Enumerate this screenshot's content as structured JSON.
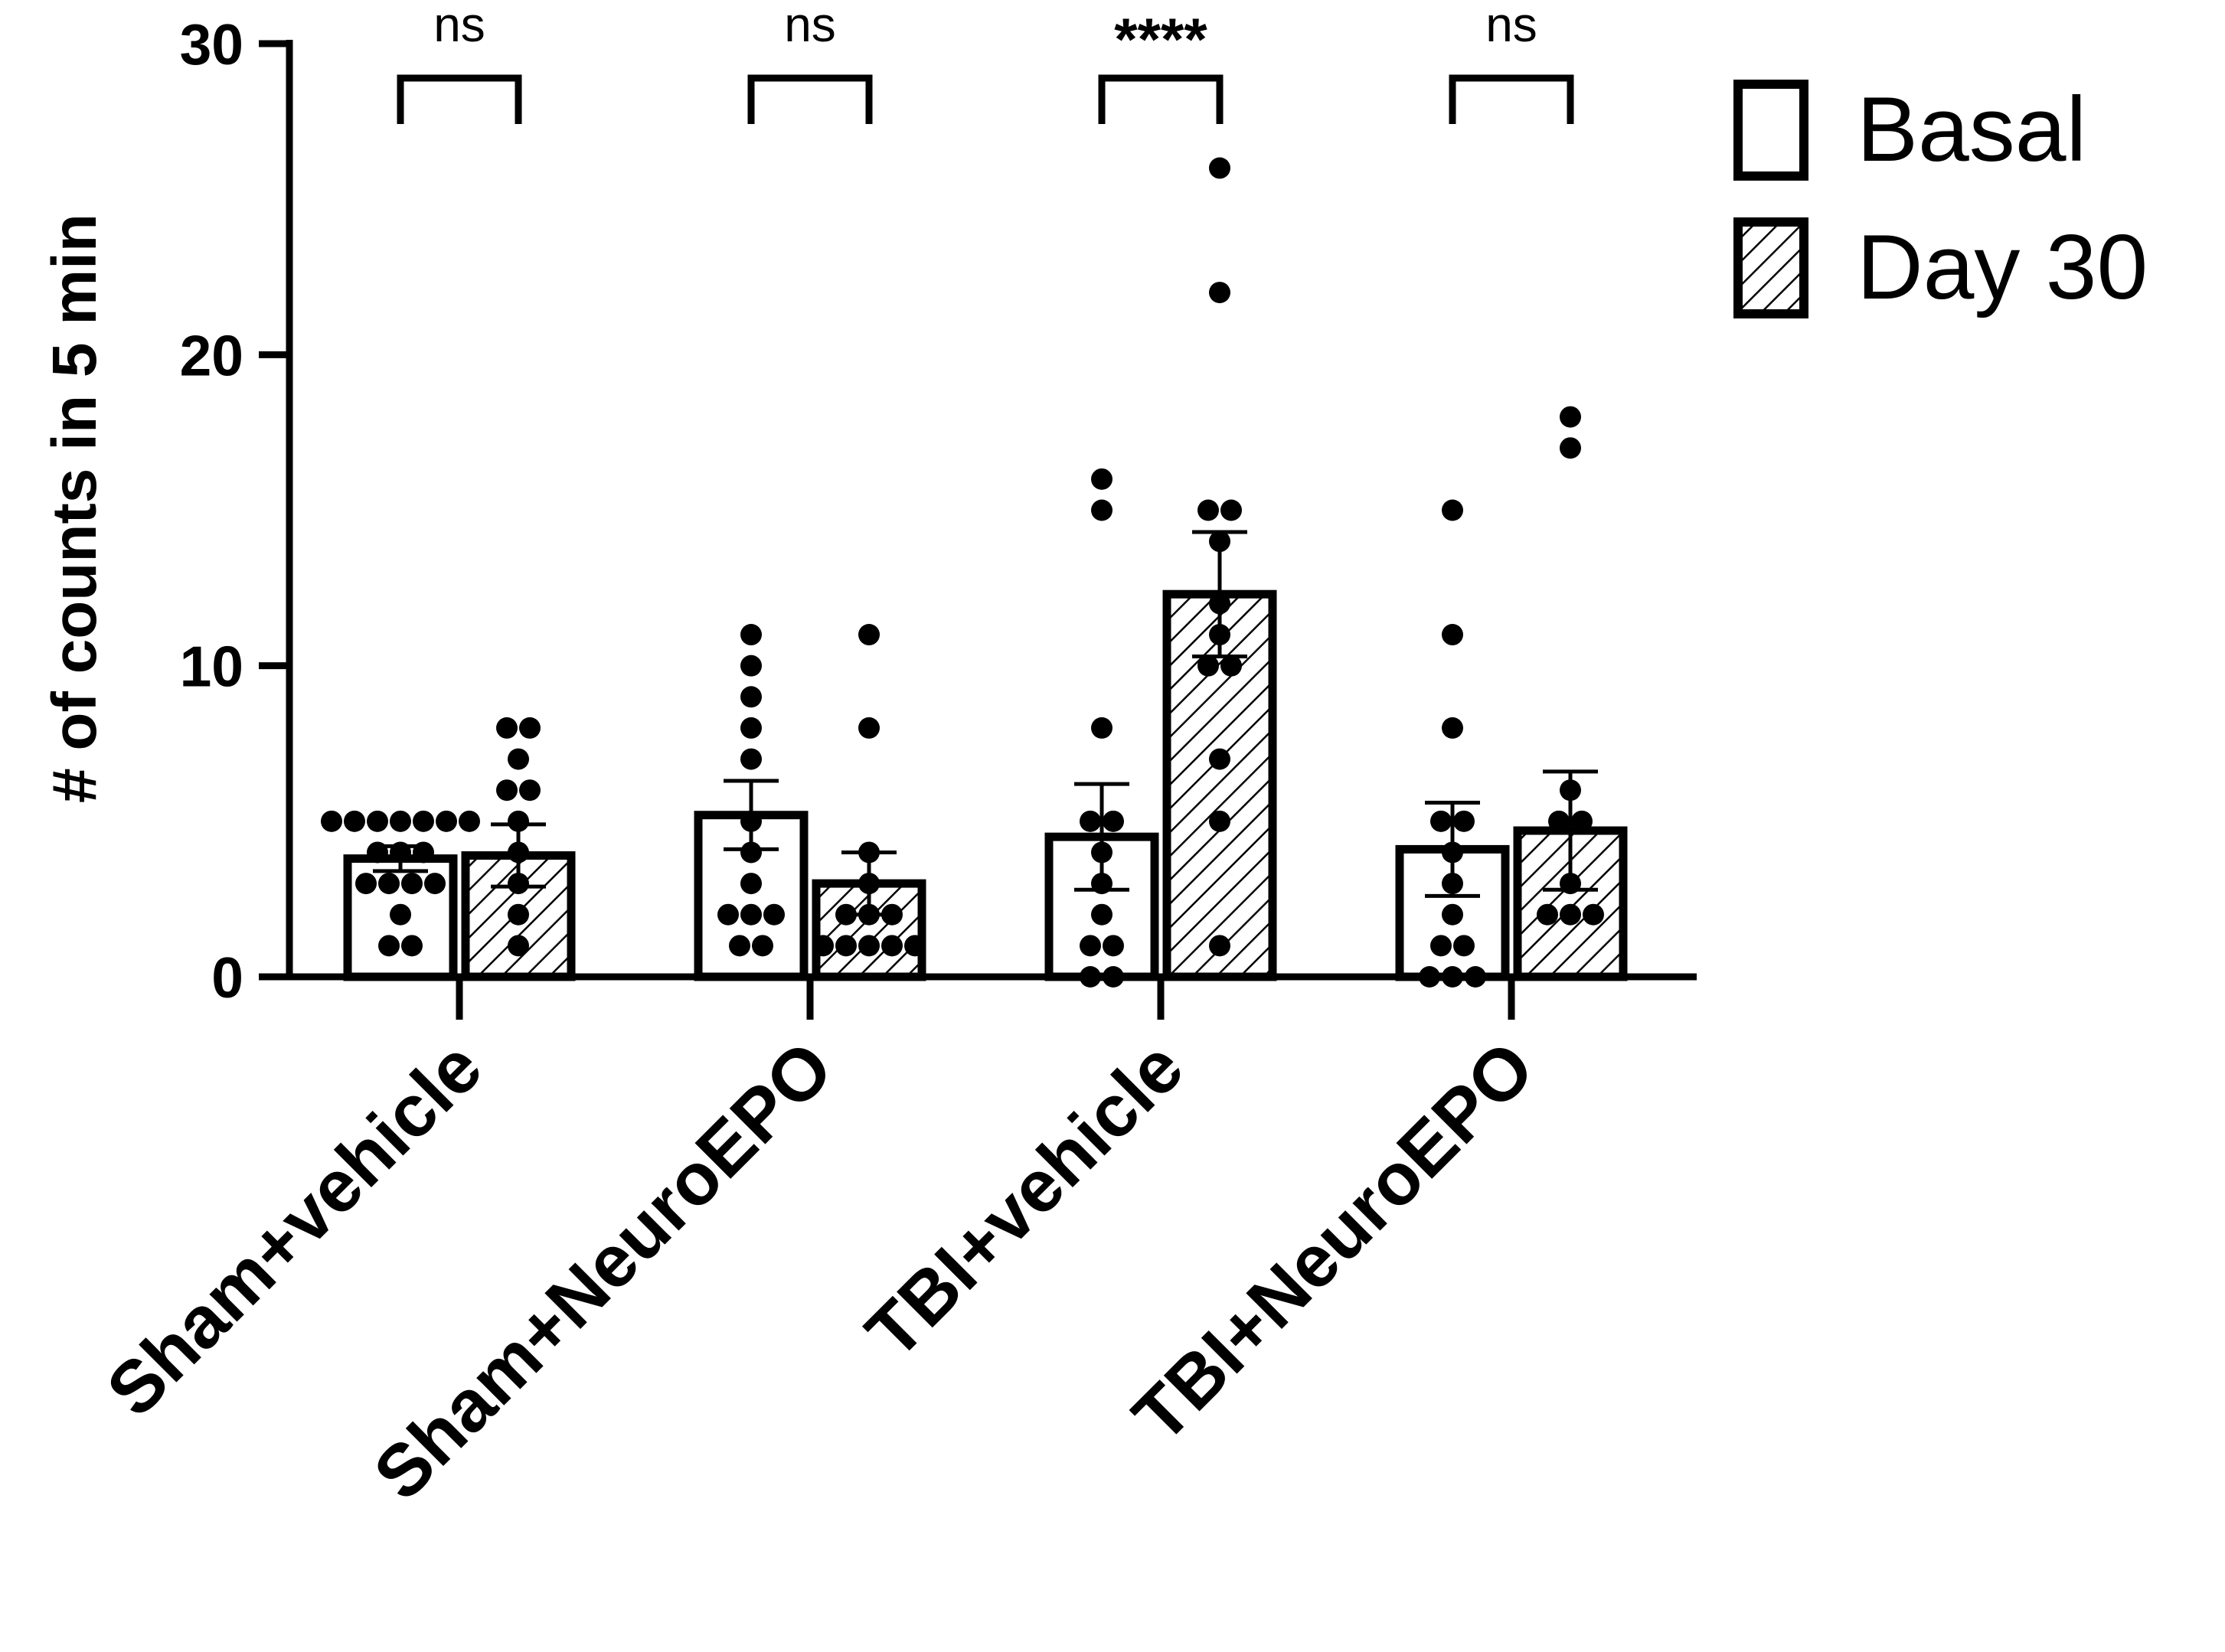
{
  "chart_data": {
    "type": "bar",
    "ylabel": "# of counts in 5 min",
    "xlabel": "",
    "ylim": [
      0,
      30
    ],
    "yticks": [
      0,
      10,
      20,
      30
    ],
    "categories": [
      "Sham+vehicle",
      "Sham+NeuroEPO",
      "TBI+vehicle",
      "TBI+NeuroEPO"
    ],
    "series": [
      {
        "name": "Basal",
        "pattern": "open",
        "values": [
          3.8,
          5.2,
          4.5,
          4.1
        ],
        "sem": [
          0.4,
          1.1,
          1.7,
          1.5
        ],
        "points": [
          [
            5,
            5,
            5,
            5,
            5,
            5,
            5,
            4,
            4,
            4,
            3,
            3,
            3,
            3,
            2,
            1,
            1
          ],
          [
            11,
            10,
            9,
            8,
            7,
            5,
            4,
            3,
            2,
            2,
            2,
            1,
            1
          ],
          [
            16,
            15,
            8,
            5,
            5,
            4,
            3,
            2,
            1,
            1,
            0,
            0
          ],
          [
            15,
            11,
            8,
            5,
            5,
            4,
            3,
            2,
            1,
            1,
            0,
            0,
            0
          ]
        ]
      },
      {
        "name": "Day 30",
        "pattern": "hatched",
        "values": [
          3.9,
          3.0,
          12.3,
          4.7
        ],
        "sem": [
          1.0,
          1.0,
          2.0,
          1.9
        ],
        "points": [
          [
            8,
            8,
            7,
            6,
            6,
            5,
            4,
            3,
            2,
            1
          ],
          [
            11,
            8,
            4,
            3,
            2,
            2,
            2,
            1,
            1,
            1,
            1,
            1
          ],
          [
            26,
            22,
            15,
            15,
            14,
            12,
            11,
            10,
            10,
            7,
            5,
            1
          ],
          [
            18,
            17,
            6,
            5,
            5,
            3,
            2,
            2,
            2
          ]
        ]
      }
    ],
    "significance": [
      "ns",
      "ns",
      "****",
      "ns"
    ],
    "legend": {
      "position": "top-right",
      "entries": [
        "Basal",
        "Day 30"
      ]
    },
    "grid": false
  }
}
